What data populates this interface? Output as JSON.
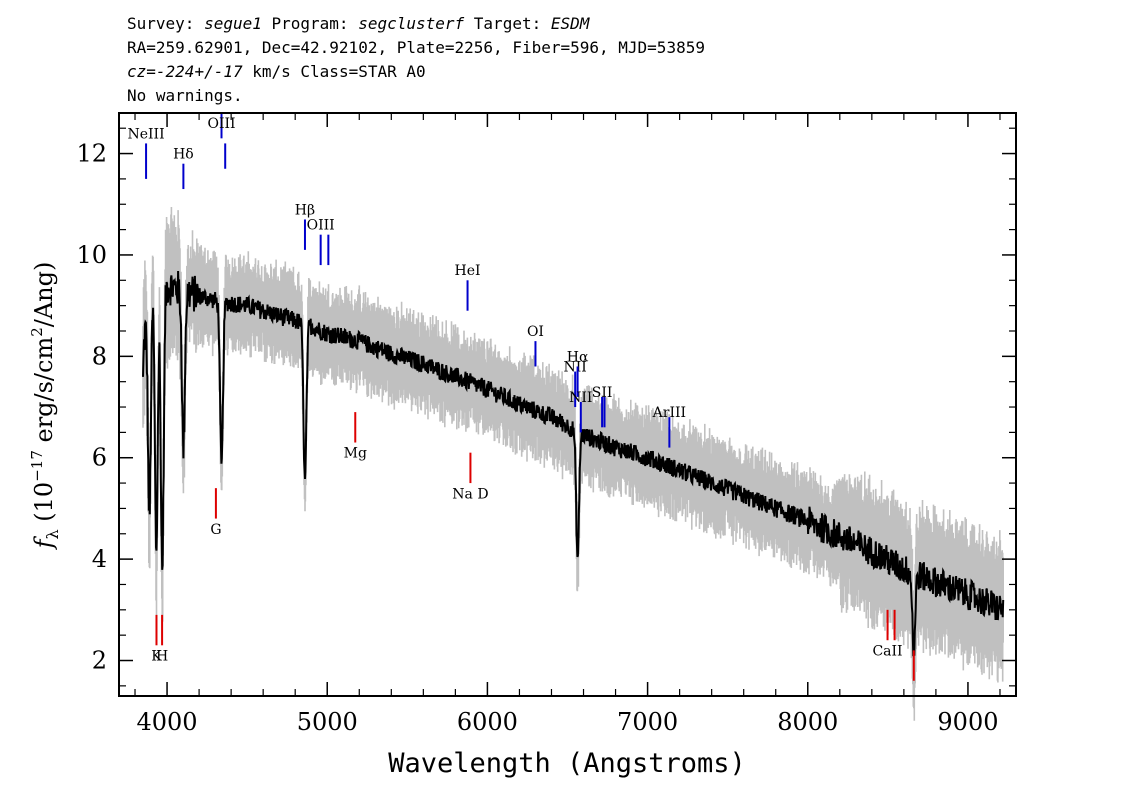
{
  "header": {
    "survey_label": "Survey: ",
    "survey": "segue1",
    "program_label": " Program: ",
    "program": "segclusterf",
    "target_label": " Target: ",
    "target": "ESDM",
    "line2": "RA=259.62901, Dec=42.92102, Plate=2256, Fiber=596, MJD=53859",
    "cz_label": "cz=",
    "cz_value": "-224+/-17",
    "cz_rest": " km/s Class=STAR A0",
    "line4": "No warnings."
  },
  "colors": {
    "flux": "#000000",
    "error": "#c0c0c0",
    "emission": "#0000cc",
    "absorption": "#dd0000"
  },
  "chart_data": {
    "type": "line",
    "xlabel": "Wavelength (Angstroms)",
    "ylabel_parts": [
      "f",
      "λ",
      " (10",
      "−17",
      " erg/s/cm",
      "2",
      "/Ang)"
    ],
    "xlim": [
      3700,
      9300
    ],
    "ylim": [
      1.3,
      12.8
    ],
    "x_ticks": [
      4000,
      5000,
      6000,
      7000,
      8000,
      9000
    ],
    "y_ticks": [
      2,
      4,
      6,
      8,
      10,
      12
    ],
    "x_tick_labels": [
      "4000",
      "5000",
      "6000",
      "7000",
      "8000",
      "9000"
    ],
    "y_tick_labels": [
      "2",
      "4",
      "6",
      "8",
      "10",
      "12"
    ],
    "flux_continuum": {
      "x": [
        3850,
        3900,
        4000,
        4100,
        4200,
        4300,
        4500,
        4700,
        4900,
        5000,
        5200,
        5400,
        5600,
        5800,
        6000,
        6200,
        6400,
        6600,
        6800,
        7000,
        7200,
        7400,
        7600,
        7800,
        8000,
        8200,
        8400,
        8600,
        8800,
        9000,
        9220
      ],
      "y": [
        8.3,
        9.3,
        9.4,
        9.3,
        9.2,
        9.1,
        9.0,
        8.8,
        8.6,
        8.45,
        8.3,
        8.05,
        7.85,
        7.6,
        7.35,
        7.05,
        6.8,
        6.45,
        6.2,
        6.0,
        5.75,
        5.5,
        5.25,
        5.0,
        4.75,
        4.45,
        4.15,
        3.8,
        3.55,
        3.3,
        3.0
      ]
    },
    "absorption_features": [
      {
        "x": 3835,
        "y": 5.0
      },
      {
        "x": 3890,
        "y": 4.8
      },
      {
        "x": 3933,
        "y": 4.2
      },
      {
        "x": 3970,
        "y": 3.8
      },
      {
        "x": 4102,
        "y": 6.2
      },
      {
        "x": 4340,
        "y": 5.8
      },
      {
        "x": 4861,
        "y": 5.5
      },
      {
        "x": 6563,
        "y": 4.0
      },
      {
        "x": 8662,
        "y": 2.2
      }
    ],
    "spectral_lines": [
      {
        "label": "NeIII",
        "x": 3869,
        "y1": 11.5,
        "y2": 12.2,
        "color": "emission",
        "label_y": 12.3
      },
      {
        "label": "Hδ",
        "x": 4102,
        "y1": 11.3,
        "y2": 11.8,
        "color": "emission",
        "label_y": 11.9
      },
      {
        "label": "OIII",
        "x": 4340,
        "y1": 12.3,
        "y2": 13.1,
        "color": "emission",
        "label_y": 12.5
      },
      {
        "label": "OIII",
        "x": 4363,
        "y1": 11.7,
        "y2": 12.2,
        "color": "emission",
        "label_y": 12.5
      },
      {
        "label": "Hβ",
        "x": 4861,
        "y1": 10.1,
        "y2": 10.7,
        "color": "emission",
        "label_y": 10.8
      },
      {
        "label": "OIII",
        "x": 4959,
        "y1": 9.8,
        "y2": 10.4,
        "color": "emission",
        "label_y": 10.5
      },
      {
        "label": "OIII",
        "x": 5007,
        "y1": 9.8,
        "y2": 10.4,
        "color": "emission",
        "label_y": 10.5
      },
      {
        "label": "HeI",
        "x": 5876,
        "y1": 8.9,
        "y2": 9.5,
        "color": "emission",
        "label_y": 9.6
      },
      {
        "label": "OI",
        "x": 6300,
        "y1": 7.8,
        "y2": 8.3,
        "color": "emission",
        "label_y": 8.4
      },
      {
        "label": "NII",
        "x": 6548,
        "y1": 7.0,
        "y2": 7.7,
        "color": "emission",
        "label_y": 7.7
      },
      {
        "label": "Hα",
        "x": 6563,
        "y1": 7.2,
        "y2": 7.8,
        "color": "emission",
        "label_y": 7.9
      },
      {
        "label": "NII",
        "x": 6583,
        "y1": 6.5,
        "y2": 7.1,
        "color": "emission",
        "label_y": 7.1
      },
      {
        "label": "SII",
        "x": 6716,
        "y1": 6.6,
        "y2": 7.2,
        "color": "emission",
        "label_y": 7.2
      },
      {
        "label": "SII",
        "x": 6731,
        "y1": 6.6,
        "y2": 7.2,
        "color": "emission",
        "label_y": 7.2
      },
      {
        "label": "ArIII",
        "x": 7136,
        "y1": 6.2,
        "y2": 6.8,
        "color": "emission",
        "label_y": 6.8
      },
      {
        "label": "K",
        "x": 3934,
        "y1": 2.3,
        "y2": 2.9,
        "color": "absorption",
        "label_y": 2.0
      },
      {
        "label": "H",
        "x": 3969,
        "y1": 2.3,
        "y2": 2.9,
        "color": "absorption",
        "label_y": 2.0
      },
      {
        "label": "G",
        "x": 4305,
        "y1": 4.8,
        "y2": 5.4,
        "color": "absorption",
        "label_y": 4.5
      },
      {
        "label": "Mg",
        "x": 5175,
        "y1": 6.3,
        "y2": 6.9,
        "color": "absorption",
        "label_y": 6.0
      },
      {
        "label": "Na D",
        "x": 5894,
        "y1": 5.5,
        "y2": 6.1,
        "color": "absorption",
        "label_y": 5.2
      },
      {
        "label": "CaII",
        "x": 8498,
        "y1": 2.4,
        "y2": 3.0,
        "color": "absorption",
        "label_y": 2.1
      },
      {
        "label": "CaII",
        "x": 8542,
        "y1": 2.4,
        "y2": 3.0,
        "color": "absorption",
        "label_y": 2.1
      },
      {
        "label": "CaII",
        "x": 8662,
        "y1": 1.6,
        "y2": 2.2,
        "color": "absorption",
        "label_y": 2.1
      }
    ]
  }
}
